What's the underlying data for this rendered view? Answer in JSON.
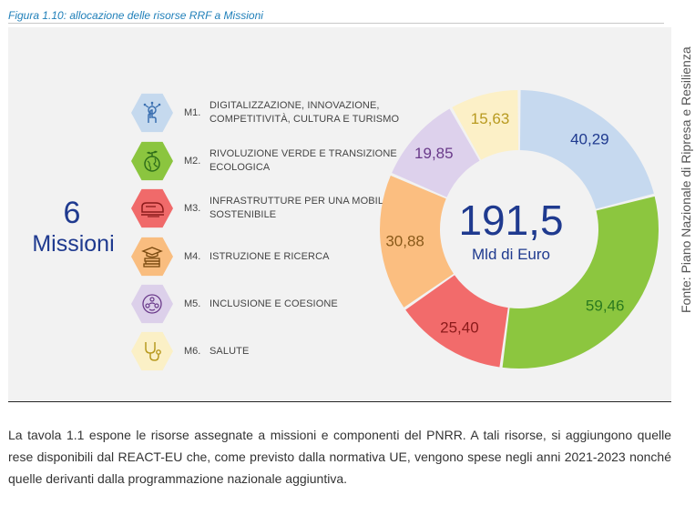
{
  "caption": "Figura 1.10: allocazione delle risorse RRF a Missioni",
  "side_note": "Fonte: Piano Nazionale di Ripresa e Resilienza",
  "missions_count": {
    "number": "6",
    "label": "Missioni"
  },
  "missions": [
    {
      "code": "M1.",
      "label": "DIGITALIZZAZIONE, INNOVAZIONE, COMPETITIVITÀ, CULTURA E TURISMO",
      "icon": "digital-hand-icon",
      "color": "#c5d9ee"
    },
    {
      "code": "M2.",
      "label": "RIVOLUZIONE VERDE E TRANSIZIONE ECOLOGICA",
      "icon": "green-globe-icon",
      "color": "#8bc53f"
    },
    {
      "code": "M3.",
      "label": "INFRASTRUTTURE PER UNA MOBILITÀ SOSTENIBILE",
      "icon": "train-icon",
      "color": "#f06a6a"
    },
    {
      "code": "M4.",
      "label": "ISTRUZIONE E RICERCA",
      "icon": "graduation-books-icon",
      "color": "#f9bd7f"
    },
    {
      "code": "M5.",
      "label": "INCLUSIONE E COESIONE",
      "icon": "people-circle-icon",
      "color": "#dcd0ea"
    },
    {
      "code": "M6.",
      "label": "SALUTE",
      "icon": "stethoscope-icon",
      "color": "#fbf0c6"
    }
  ],
  "chart_data": {
    "type": "pie",
    "donut": true,
    "total_label": "191,5",
    "total_unit": "Mld di Euro",
    "slices": [
      {
        "mission": "M1",
        "value": 40.29,
        "label": "40,29",
        "color": "#c6d9ef",
        "label_color": "#1f3a8f"
      },
      {
        "mission": "M2",
        "value": 59.46,
        "label": "59,46",
        "color": "#8cc63f",
        "label_color": "#2b7a1f"
      },
      {
        "mission": "M3",
        "value": 25.4,
        "label": "25,40",
        "color": "#f26b6b",
        "label_color": "#8b1a1a"
      },
      {
        "mission": "M4",
        "value": 30.88,
        "label": "30,88",
        "color": "#fbbe80",
        "label_color": "#8a5a1a"
      },
      {
        "mission": "M5",
        "value": 19.85,
        "label": "19,85",
        "color": "#ddd1ec",
        "label_color": "#6a3a8a"
      },
      {
        "mission": "M6",
        "value": 15.63,
        "label": "15,63",
        "color": "#fcf0c7",
        "label_color": "#b89a20"
      }
    ]
  },
  "body_text": "La tavola 1.1 espone le risorse assegnate a missioni e componenti del PNRR. A tali risorse, si aggiungono quelle rese disponibili dal REACT-EU che, come previsto dalla normativa UE, vengono spese negli anni 2021-2023 nonché quelle derivanti dalla programmazione nazionale aggiuntiva."
}
